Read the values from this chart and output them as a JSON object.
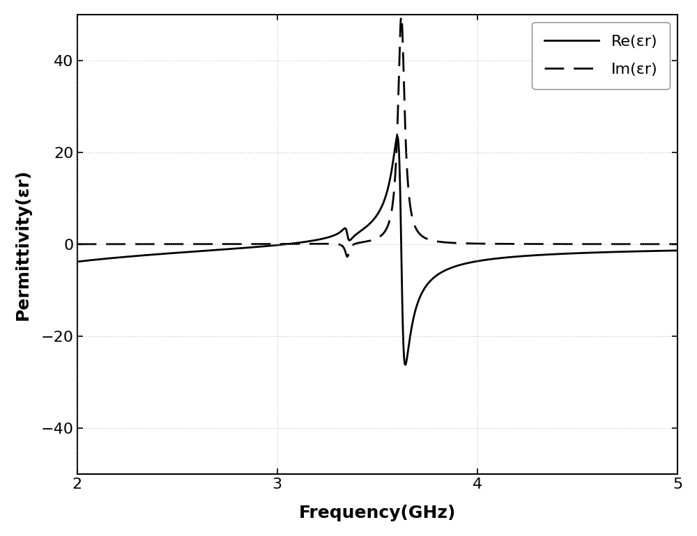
{
  "title": "",
  "xlabel": "Frequency(GHz)",
  "ylabel": "Permittivity(εr)",
  "legend_re": "Re(εr)",
  "legend_im": "Im(εr)",
  "xlim": [
    2,
    5
  ],
  "ylim": [
    -50,
    50
  ],
  "yticks": [
    -40,
    -20,
    0,
    20,
    40
  ],
  "xticks": [
    2,
    3,
    4,
    5
  ],
  "background_color": "#ffffff",
  "grid_color": "#aaaaaa",
  "line_color": "#000000",
  "figsize": [
    10.0,
    7.7
  ],
  "dpi": 100,
  "f0_main": 3.62,
  "gamma_main": 0.04,
  "fp2_main": 7.2,
  "f0_small": 3.35,
  "gamma_small": 0.025,
  "fp2_small": 0.25,
  "A_drude": 18.5
}
